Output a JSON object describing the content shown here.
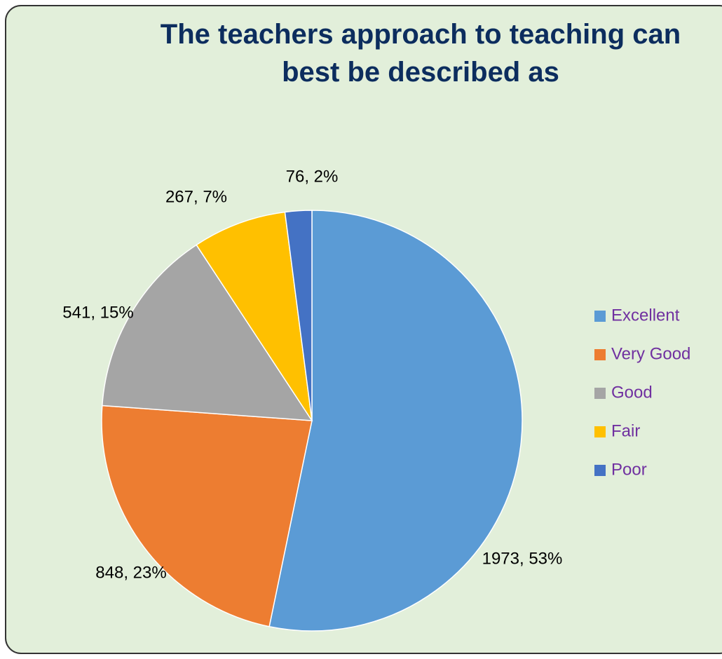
{
  "chart_data": {
    "type": "pie",
    "title": "The teachers approach to teaching can best be described as",
    "categories": [
      "Excellent",
      "Very Good",
      "Good",
      "Fair",
      "Poor"
    ],
    "values": [
      1973,
      848,
      541,
      267,
      76
    ],
    "value_labels": [
      "1973, 53%",
      "848, 23%",
      "541, 15%",
      "267, 7%",
      "76, 2%"
    ],
    "colors": [
      "#5b9bd5",
      "#ed7d31",
      "#a5a5a5",
      "#ffc000",
      "#4472c4"
    ],
    "legend": "right"
  }
}
